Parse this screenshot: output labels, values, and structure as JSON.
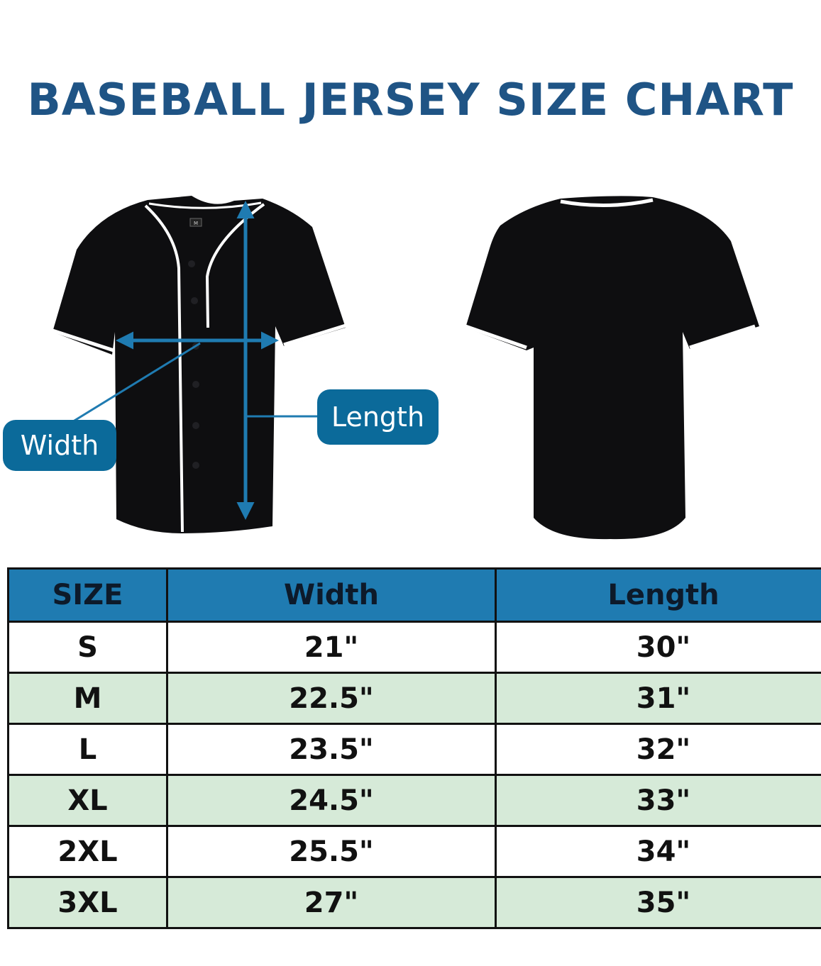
{
  "title": "BASEBALL JERSEY SIZE CHART",
  "diagram": {
    "width_label": "Width",
    "length_label": "Length",
    "front_tag": "M"
  },
  "colors": {
    "title": "#1f5485",
    "callout": "#0b6a9a",
    "arrow": "#1f7bb1",
    "header": "#1f7bb1",
    "alt_row": "#d6ead8",
    "jersey": "#0e0e10",
    "piping": "#ffffff"
  },
  "table": {
    "headers": [
      "SIZE",
      "Width",
      "Length"
    ],
    "rows": [
      [
        "S",
        "21\"",
        "30\""
      ],
      [
        "M",
        "22.5\"",
        "31\""
      ],
      [
        "L",
        "23.5\"",
        "32\""
      ],
      [
        "XL",
        "24.5\"",
        "33\""
      ],
      [
        "2XL",
        "25.5\"",
        "34\""
      ],
      [
        "3XL",
        "27\"",
        "35\""
      ]
    ]
  }
}
